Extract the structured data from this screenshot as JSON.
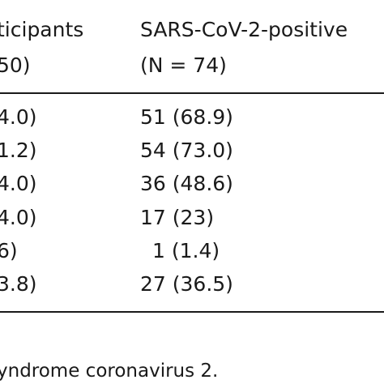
{
  "table": {
    "headers": [
      {
        "line1": "ticipants",
        "line2": "50)"
      },
      {
        "line1": "SARS-CoV-2-positive",
        "line2": "(N = 74)"
      }
    ],
    "rows": [
      {
        "a": "4.0)",
        "b": "51 (68.9)"
      },
      {
        "a": "1.2)",
        "b": "54 (73.0)"
      },
      {
        "a": "4.0)",
        "b": "36 (48.6)"
      },
      {
        "a": "4.0)",
        "b": "17 (23)"
      },
      {
        "a": "6)",
        "b": "1 (1.4)"
      },
      {
        "a": "3.8)",
        "b": "27 (36.5)"
      }
    ]
  },
  "footnote": "yndrome coronavirus 2."
}
